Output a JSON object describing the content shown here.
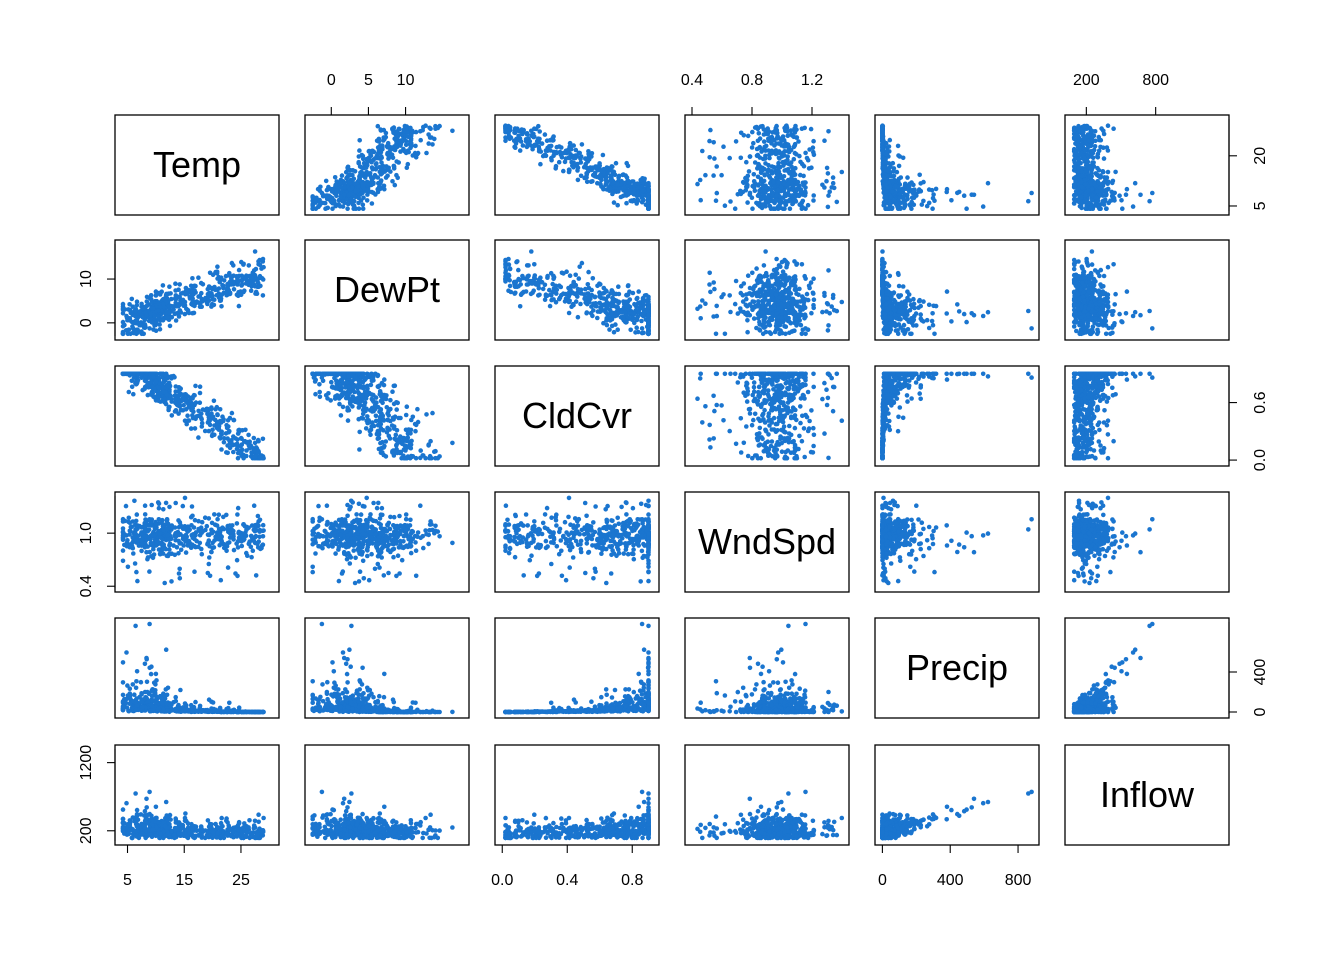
{
  "chart_data": {
    "type": "scatter",
    "subtype": "scatterplot-matrix",
    "point_color": "#1a75cf",
    "sample_size": 500,
    "variables": [
      {
        "name": "Temp",
        "range": [
          3.5,
          31
        ],
        "ticks": [
          5,
          15,
          25
        ],
        "tick_labels": [
          "5",
          "15",
          "25"
        ],
        "axis_side": "bottom"
      },
      {
        "name": "DewPt",
        "range": [
          -3,
          18
        ],
        "ticks": [
          0,
          5,
          10
        ],
        "tick_labels": [
          "0",
          "5",
          "10"
        ],
        "axis_side": "top"
      },
      {
        "name": "CldCvr",
        "range": [
          -0.02,
          0.94
        ],
        "ticks": [
          0.0,
          0.4,
          0.8
        ],
        "tick_labels": [
          "0.0",
          "0.4",
          "0.8"
        ],
        "axis_side": "bottom"
      },
      {
        "name": "WndSpd",
        "range": [
          0.38,
          1.42
        ],
        "ticks": [
          0.4,
          0.8,
          1.2
        ],
        "tick_labels": [
          "0.4",
          "0.8",
          "1.2"
        ],
        "axis_side": "top"
      },
      {
        "name": "Precip",
        "range": [
          -20,
          900
        ],
        "ticks": [
          0,
          400,
          800
        ],
        "tick_labels": [
          "0",
          "400",
          "800"
        ],
        "axis_side": "bottom"
      },
      {
        "name": "Inflow",
        "range": [
          50,
          1400
        ],
        "ticks": [
          200,
          800
        ],
        "tick_labels": [
          "200",
          "800"
        ],
        "axis_side": "top"
      }
    ],
    "left_axes": [
      {
        "row": 1,
        "variable": "DewPt",
        "ticks": [
          0,
          10
        ],
        "tick_labels": [
          "0",
          "10"
        ]
      },
      {
        "row": 3,
        "variable": "WndSpd",
        "ticks": [
          0.4,
          1.0
        ],
        "tick_labels": [
          "0.4",
          "1.0"
        ]
      },
      {
        "row": 5,
        "variable": "Inflow",
        "ticks": [
          200,
          1200
        ],
        "tick_labels": [
          "200",
          "1200"
        ]
      }
    ],
    "right_axes": [
      {
        "row": 0,
        "variable": "Temp",
        "ticks": [
          5,
          20
        ],
        "tick_labels": [
          "5",
          "20"
        ]
      },
      {
        "row": 2,
        "variable": "CldCvr",
        "ticks": [
          0.0,
          0.6
        ],
        "tick_labels": [
          "0.0",
          "0.6"
        ]
      },
      {
        "row": 4,
        "variable": "Precip",
        "ticks": [
          0,
          400
        ],
        "tick_labels": [
          "0",
          "400"
        ]
      }
    ],
    "grid": false,
    "legend": "none"
  }
}
